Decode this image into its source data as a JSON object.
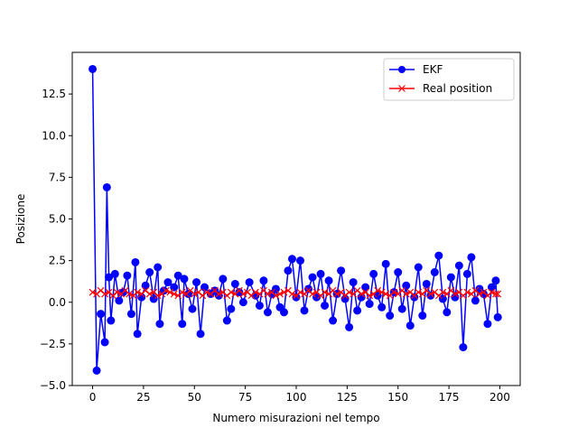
{
  "chart_data": {
    "type": "line",
    "xlabel": "Numero misurazioni nel tempo",
    "ylabel": "Posizione",
    "xlim": [
      -10,
      210
    ],
    "ylim": [
      -5,
      15
    ],
    "xticks": [
      0,
      25,
      50,
      75,
      100,
      125,
      150,
      175,
      200
    ],
    "xtick_labels": [
      "0",
      "25",
      "50",
      "75",
      "100",
      "125",
      "150",
      "175",
      "200"
    ],
    "yticks": [
      -5,
      -2.5,
      0,
      2.5,
      5,
      7.5,
      10,
      12.5
    ],
    "ytick_labels": [
      "−5.0",
      "−2.5",
      "0.0",
      "2.5",
      "5.0",
      "7.5",
      "10.0",
      "12.5"
    ],
    "grid": false,
    "legend_position": "top-right",
    "series": [
      {
        "name": "EKF",
        "color": "#0000ff",
        "marker": "circle",
        "x": [
          0,
          2,
          4,
          6,
          7,
          8,
          9,
          11,
          13,
          15,
          17,
          19,
          21,
          22,
          24,
          26,
          28,
          30,
          32,
          33,
          35,
          37,
          40,
          42,
          44,
          45,
          47,
          49,
          51,
          53,
          55,
          58,
          60,
          62,
          64,
          66,
          68,
          70,
          72,
          74,
          77,
          80,
          82,
          84,
          86,
          88,
          90,
          92,
          94,
          96,
          98,
          100,
          102,
          104,
          106,
          108,
          110,
          112,
          114,
          116,
          118,
          120,
          122,
          124,
          126,
          128,
          130,
          132,
          134,
          136,
          138,
          140,
          142,
          144,
          146,
          148,
          150,
          152,
          154,
          156,
          158,
          160,
          162,
          164,
          166,
          168,
          170,
          172,
          174,
          176,
          178,
          180,
          182,
          184,
          186,
          188,
          190,
          192,
          194,
          196,
          198,
          199
        ],
        "y": [
          14.0,
          -4.1,
          -0.7,
          -2.4,
          6.9,
          1.5,
          -1.1,
          1.7,
          0.1,
          0.6,
          1.6,
          -0.7,
          2.4,
          -1.9,
          0.3,
          1.0,
          1.8,
          0.2,
          2.1,
          -1.3,
          0.7,
          1.2,
          0.9,
          1.6,
          -1.3,
          1.4,
          0.5,
          -0.4,
          1.2,
          -1.9,
          0.9,
          0.5,
          0.7,
          0.4,
          1.4,
          -1.1,
          -0.4,
          1.1,
          0.6,
          0.0,
          1.2,
          0.4,
          -0.2,
          1.3,
          -0.6,
          0.5,
          0.8,
          -0.3,
          -0.6,
          1.9,
          2.6,
          0.3,
          2.5,
          -0.5,
          0.8,
          1.5,
          0.3,
          1.7,
          -0.2,
          1.3,
          -1.1,
          0.5,
          1.9,
          0.2,
          -1.5,
          1.2,
          -0.5,
          0.3,
          0.9,
          -0.1,
          1.7,
          0.4,
          -0.3,
          2.3,
          -0.8,
          0.6,
          1.8,
          -0.4,
          1.0,
          -1.4,
          0.3,
          2.1,
          -0.8,
          1.1,
          0.4,
          1.8,
          2.8,
          0.2,
          -0.6,
          1.5,
          0.3,
          2.2,
          -2.7,
          1.7,
          2.7,
          0.1,
          0.8,
          0.5,
          -1.3,
          0.9,
          1.3,
          -0.9
        ]
      },
      {
        "name": "Real position",
        "color": "#ff0000",
        "marker": "x",
        "x": [
          0,
          2,
          4,
          6,
          8,
          10,
          12,
          14,
          16,
          18,
          20,
          22,
          24,
          26,
          28,
          30,
          32,
          34,
          36,
          38,
          40,
          42,
          44,
          46,
          48,
          50,
          52,
          54,
          56,
          58,
          60,
          62,
          64,
          66,
          68,
          70,
          72,
          74,
          76,
          78,
          80,
          82,
          84,
          86,
          88,
          90,
          92,
          94,
          96,
          98,
          100,
          102,
          104,
          106,
          108,
          110,
          112,
          114,
          116,
          118,
          120,
          122,
          124,
          126,
          128,
          130,
          132,
          134,
          136,
          138,
          140,
          142,
          144,
          146,
          148,
          150,
          152,
          154,
          156,
          158,
          160,
          162,
          164,
          166,
          168,
          170,
          172,
          174,
          176,
          178,
          180,
          182,
          184,
          186,
          188,
          190,
          192,
          194,
          196,
          198,
          199
        ],
        "y": [
          0.6,
          0.5,
          0.7,
          0.5,
          0.6,
          0.4,
          0.6,
          0.5,
          0.7,
          0.5,
          0.4,
          0.6,
          0.5,
          0.7,
          0.5,
          0.6,
          0.4,
          0.5,
          0.7,
          0.6,
          0.5,
          0.4,
          0.6,
          0.5,
          0.7,
          0.5,
          0.6,
          0.4,
          0.6,
          0.5,
          0.7,
          0.5,
          0.6,
          0.4,
          0.6,
          0.5,
          0.7,
          0.5,
          0.6,
          0.4,
          0.6,
          0.5,
          0.7,
          0.5,
          0.6,
          0.4,
          0.5,
          0.6,
          0.7,
          0.5,
          0.4,
          0.6,
          0.5,
          0.7,
          0.5,
          0.6,
          0.4,
          0.6,
          0.5,
          0.7,
          0.5,
          0.6,
          0.4,
          0.6,
          0.5,
          0.7,
          0.5,
          0.6,
          0.4,
          0.5,
          0.7,
          0.6,
          0.5,
          0.4,
          0.6,
          0.5,
          0.7,
          0.5,
          0.6,
          0.4,
          0.6,
          0.5,
          0.7,
          0.5,
          0.6,
          0.4,
          0.6,
          0.5,
          0.7,
          0.5,
          0.6,
          0.4,
          0.6,
          0.5,
          0.7,
          0.5,
          0.6,
          0.4,
          0.6,
          0.5,
          0.5
        ]
      }
    ]
  }
}
